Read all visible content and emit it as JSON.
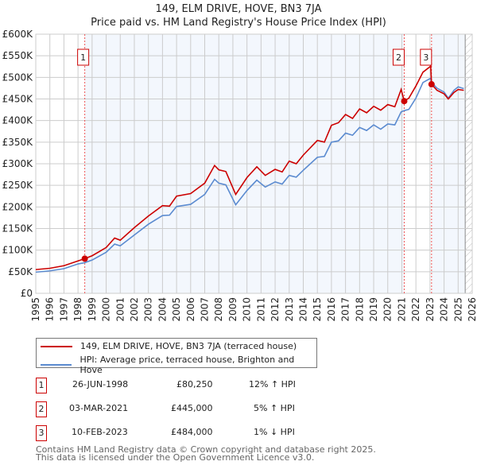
{
  "chart_data": {
    "type": "line",
    "title": "149, ELM DRIVE, HOVE, BN3 7JA",
    "subtitle": "Price paid vs. HM Land Registry's House Price Index (HPI)",
    "xlim": [
      1995,
      2026
    ],
    "ylim": [
      0,
      600000
    ],
    "y_ticks": [
      "£0",
      "£50K",
      "£100K",
      "£150K",
      "£200K",
      "£250K",
      "£300K",
      "£350K",
      "£400K",
      "£450K",
      "£500K",
      "£550K",
      "£600K"
    ],
    "x_ticks": [
      "1995",
      "1996",
      "1997",
      "1998",
      "1999",
      "2000",
      "2001",
      "2002",
      "2003",
      "2004",
      "2005",
      "2006",
      "2007",
      "2008",
      "2009",
      "2010",
      "2011",
      "2012",
      "2013",
      "2014",
      "2015",
      "2016",
      "2017",
      "2018",
      "2019",
      "2020",
      "2021",
      "2022",
      "2023",
      "2024",
      "2025",
      "2026"
    ],
    "grid": true,
    "series": [
      {
        "name": "149, ELM DRIVE, HOVE, BN3 7JA (terraced house)",
        "color": "#cc0000",
        "x": [
          1995,
          1996,
          1997,
          1998,
          1998.48,
          1999,
          2000,
          2000.6,
          2001,
          2002,
          2003,
          2004,
          2004.5,
          2005,
          2006,
          2007,
          2007.7,
          2008,
          2008.5,
          2009.2,
          2010,
          2010.7,
          2011.3,
          2012,
          2012.5,
          2013,
          2013.5,
          2014,
          2015,
          2015.5,
          2016,
          2016.5,
          2017,
          2017.5,
          2018,
          2018.5,
          2019,
          2019.5,
          2020,
          2020.5,
          2020.95,
          2021.17,
          2021.5,
          2022,
          2022.5,
          2023.05,
          2023.11,
          2023.5,
          2024,
          2024.3,
          2024.7,
          2025,
          2025.4
        ],
        "y": [
          55000,
          58000,
          64000,
          75000,
          80250,
          87000,
          106000,
          128000,
          123000,
          152000,
          179000,
          203000,
          202000,
          225000,
          231000,
          255000,
          296000,
          286000,
          282000,
          229000,
          268000,
          293000,
          273000,
          287000,
          281000,
          306000,
          300000,
          320000,
          354000,
          350000,
          389000,
          395000,
          414000,
          405000,
          427000,
          418000,
          433000,
          424000,
          437000,
          432000,
          472000,
          445000,
          452000,
          480000,
          512000,
          526000,
          484000,
          470000,
          462000,
          450000,
          465000,
          472000,
          470000
        ]
      },
      {
        "name": "HPI: Average price, terraced house, Brighton and Hove",
        "color": "#5b8bd0",
        "x": [
          1995,
          1996,
          1997,
          1998,
          1998.48,
          1999,
          2000,
          2000.6,
          2001,
          2002,
          2003,
          2004,
          2004.5,
          2005,
          2006,
          2007,
          2007.7,
          2008,
          2008.5,
          2009.2,
          2010,
          2010.7,
          2011.3,
          2012,
          2012.5,
          2013,
          2013.5,
          2014,
          2015,
          2015.5,
          2016,
          2016.5,
          2017,
          2017.5,
          2018,
          2018.5,
          2019,
          2019.5,
          2020,
          2020.5,
          2020.95,
          2021.17,
          2021.5,
          2022,
          2022.5,
          2023.05,
          2023.11,
          2023.5,
          2024,
          2024.3,
          2024.7,
          2025,
          2025.4
        ],
        "y": [
          49000,
          52000,
          57000,
          68000,
          71000,
          77000,
          95000,
          114000,
          110000,
          135000,
          160000,
          180000,
          181000,
          201000,
          206000,
          229000,
          264000,
          255000,
          251000,
          205000,
          238000,
          262000,
          246000,
          258000,
          253000,
          273000,
          269000,
          285000,
          315000,
          317000,
          350000,
          353000,
          371000,
          366000,
          384000,
          377000,
          390000,
          380000,
          392000,
          390000,
          420000,
          423000,
          426000,
          452000,
          488000,
          498000,
          488000,
          475000,
          466000,
          452000,
          470000,
          478000,
          474000
        ]
      }
    ],
    "annotations": [
      {
        "label": "1",
        "x": 1998.48,
        "y": 80250
      },
      {
        "label": "2",
        "x": 2021.17,
        "y": 445000
      },
      {
        "label": "3",
        "x": 2023.11,
        "y": 484000
      }
    ]
  },
  "legend": {
    "red": "149, ELM DRIVE, HOVE, BN3 7JA (terraced house)",
    "blue": "HPI: Average price, terraced house, Brighton and Hove"
  },
  "transactions": [
    {
      "num": "1",
      "date": "26-JUN-1998",
      "price": "£80,250",
      "hpi": "12% ↑ HPI"
    },
    {
      "num": "2",
      "date": "03-MAR-2021",
      "price": "£445,000",
      "hpi": "5% ↑ HPI"
    },
    {
      "num": "3",
      "date": "10-FEB-2023",
      "price": "£484,000",
      "hpi": "1% ↓ HPI"
    }
  ],
  "footer": {
    "line1": "Contains HM Land Registry data © Crown copyright and database right 2025.",
    "line2": "This data is licensed under the Open Government Licence v3.0."
  }
}
